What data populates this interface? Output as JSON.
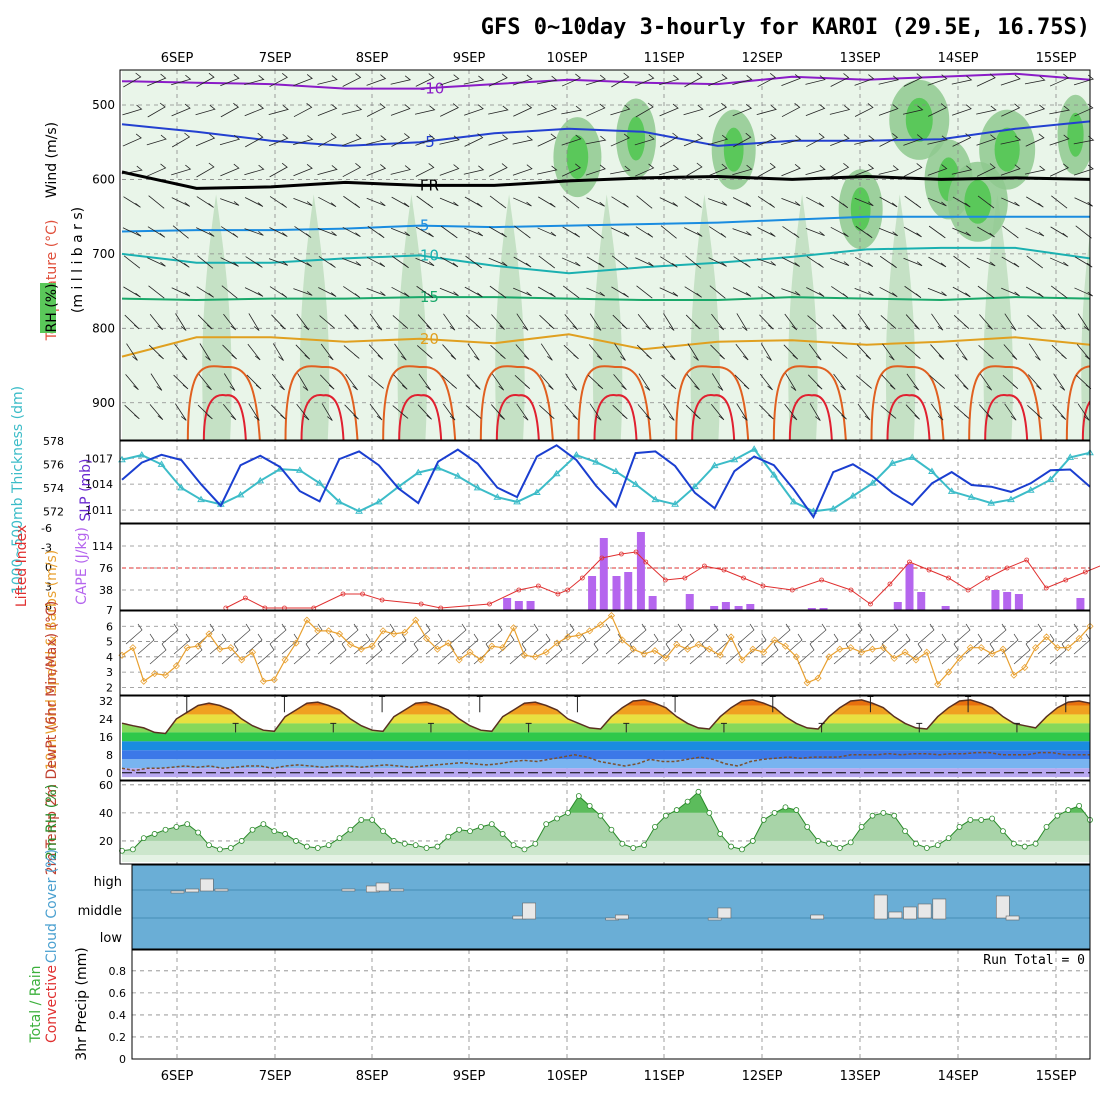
{
  "title": "GFS 0~10day 3-hourly for KAROI (29.5E, 16.75S)",
  "dates": [
    "6SEP",
    "7SEP",
    "8SEP",
    "9SEP",
    "10SEP",
    "11SEP",
    "12SEP",
    "13SEP",
    "14SEP",
    "15SEP"
  ],
  "run_total": "Run Total = 0",
  "colors": {
    "grid": "#888888",
    "temp_min10": "#8a1cc7",
    "temp_min5": "#2340d0",
    "fr": "#000000",
    "temp5": "#1a8ce0",
    "temp10": "#1ab0b0",
    "temp15": "#1aa86a",
    "temp20": "#e0a020",
    "temp25": "#e06020",
    "temp30": "#e02030",
    "rh": "#7dc87d",
    "cloud_bg": "#6aaed6",
    "slp": "#1a3ed0",
    "thick": "#3cbcc8",
    "cape": "#b566ee",
    "li": "#e03030",
    "wind": "#e8a030"
  },
  "chart_data": [
    {
      "type": "contour",
      "panel": "Wind / Temperature / RH",
      "ylabel_parts": [
        "Wind (m/s)",
        "Temperature (°C)",
        "RH (%)",
        "(m i l l i b a r s)"
      ],
      "y_ticks": [
        "500",
        "600",
        "700",
        "800",
        "900"
      ],
      "temperature_contours": [
        {
          "label": "-10",
          "pressure": [
            468,
            470,
            472,
            478,
            478,
            472,
            466,
            470,
            472,
            462,
            466,
            462,
            458,
            466
          ]
        },
        {
          "label": "-5",
          "pressure": [
            526,
            536,
            548,
            555,
            550,
            538,
            532,
            536,
            555,
            548,
            548,
            546,
            532,
            522
          ]
        },
        {
          "label": "FR",
          "pressure": [
            590,
            612,
            610,
            604,
            608,
            608,
            602,
            598,
            596,
            600,
            596,
            600,
            598,
            600
          ]
        },
        {
          "label": "5",
          "pressure": [
            670,
            668,
            668,
            666,
            662,
            664,
            662,
            660,
            658,
            654,
            650,
            650,
            650,
            650
          ]
        },
        {
          "label": "10",
          "pressure": [
            700,
            712,
            712,
            706,
            702,
            716,
            726,
            718,
            712,
            704,
            694,
            692,
            692,
            706
          ]
        },
        {
          "label": "15",
          "pressure": [
            760,
            762,
            760,
            760,
            758,
            758,
            760,
            762,
            762,
            758,
            760,
            762,
            758,
            760
          ]
        },
        {
          "label": "20",
          "pressure": [
            838,
            812,
            812,
            818,
            814,
            820,
            808,
            828,
            818,
            816,
            822,
            818,
            812,
            822
          ]
        }
      ],
      "rh_legend": "RH (%)",
      "wind_barbs": true
    },
    {
      "type": "line",
      "panel": "SLP / Thickness",
      "series": [
        {
          "name": "SLP (mb)",
          "y_ticks": [
            "1011",
            "1014",
            "1017"
          ],
          "values": [
            1014.5,
            1016.5,
            1017.4,
            1016.8,
            1014,
            1011.5,
            1016.2,
            1017.3,
            1016,
            1013.2,
            1012,
            1016.9,
            1017.8,
            1016.2,
            1013.5,
            1011.8,
            1016.6,
            1018,
            1016.4,
            1013.6,
            1012.5,
            1017.2,
            1018.5,
            1016.8,
            1013.8,
            1011.4,
            1017.6,
            1017.8,
            1016.1,
            1013,
            1011.2,
            1015.5,
            1017.2,
            1016.2,
            1013.4,
            1010.2,
            1015.4,
            1016.3,
            1014.9,
            1013,
            1011.6,
            1014.1,
            1015.4,
            1013.9,
            1013.7,
            1013.1,
            1014.1,
            1015.6,
            1015.7,
            1013.7
          ]
        },
        {
          "name": "1000~500mb Thickness (dm)",
          "y_ticks": [
            "572",
            "574",
            "576",
            "578"
          ],
          "values": [
            576.4,
            576.8,
            576.0,
            574.0,
            573.0,
            572.6,
            573.4,
            574.6,
            575.6,
            575.5,
            574.4,
            572.8,
            572.0,
            572.8,
            574.1,
            575.3,
            575.7,
            575.0,
            574.0,
            573.2,
            572.8,
            573.6,
            575.2,
            576.8,
            576.2,
            575.4,
            574.3,
            573.0,
            572.6,
            574.1,
            575.9,
            576.4,
            577.3,
            575.1,
            572.8,
            572.0,
            572.2,
            573.3,
            574.4,
            576.1,
            576.6,
            575.4,
            573.7,
            573.2,
            572.7,
            573.0,
            573.8,
            574.7,
            576.6,
            577.0
          ]
        }
      ]
    },
    {
      "type": "bar+line",
      "panel": "Lifted Index / CAPE",
      "ylabel_li": "Lifted Index",
      "ylabel_cape": "CAPE (J/kg)",
      "li_ticks": [
        "-6",
        "-3",
        "0",
        "3",
        "6"
      ],
      "cape_ticks": [
        "7",
        "38",
        "76",
        "114"
      ],
      "cape_values": [
        0,
        0,
        0,
        0,
        0,
        0,
        0,
        0,
        0,
        0,
        0,
        0,
        0,
        0,
        0,
        0,
        0,
        0,
        0,
        0,
        0,
        0,
        0,
        0,
        0,
        0,
        0,
        0,
        0,
        0,
        0,
        0,
        0,
        0,
        0,
        0,
        0,
        0,
        0,
        0,
        0,
        0,
        0,
        0,
        0,
        0,
        0,
        0,
        0,
        0,
        0,
        0,
        0,
        0,
        0,
        0,
        0,
        0,
        0,
        0,
        0,
        0,
        0,
        0,
        0,
        0,
        0,
        0,
        0,
        0,
        0,
        0,
        0,
        0,
        0,
        0,
        0,
        0,
        0,
        0,
        0,
        0,
        0,
        0,
        0,
        0
      ]
    },
    {
      "type": "line",
      "panel": "10m Wind",
      "ylabel": "10m Wind Speed & Barbs (m/s)",
      "y_ticks": [
        "2",
        "3",
        "4",
        "5",
        "6"
      ],
      "values": [
        4.1,
        4.6,
        2.4,
        2.9,
        2.8,
        3.4,
        4.6,
        4.7,
        5.5,
        4.5,
        4.6,
        3.8,
        4.3,
        2.4,
        2.5,
        3.8,
        4.9,
        6.4,
        5.7,
        5.7,
        5.5,
        4.8,
        4.5,
        4.7,
        5.7,
        5.5,
        5.6,
        6.4,
        5.2,
        4.5,
        4.9,
        3.8,
        4.3,
        3.8,
        4.7,
        4.6,
        5.9,
        4.1,
        4.0,
        4.3,
        4.9,
        5.3,
        5.4,
        5.7,
        6.1,
        6.7,
        5.1,
        4.5,
        4.2,
        4.4,
        3.9,
        4.8,
        4.5,
        4.8,
        4.5,
        4.1,
        5.3,
        3.8,
        4.5,
        4.3,
        5.1,
        4.7,
        4.0,
        2.3,
        2.6,
        4.0,
        4.5,
        4.6,
        4.3,
        4.5,
        4.6,
        3.9,
        4.3,
        3.8,
        4.3,
        2.2,
        3.0,
        3.9,
        4.6,
        4.6,
        4.2,
        4.5,
        2.8,
        3.3,
        4.6,
        5.3,
        4.6,
        4.6,
        5.2,
        6.0
      ]
    },
    {
      "type": "area+line",
      "panel": "2m Temp / DewPt",
      "ylabel": "2m Temp 2m DewPt (6hr Min/Max) (°C)",
      "y_ticks": [
        "0",
        "8",
        "16",
        "24",
        "32"
      ],
      "temp_values": [
        22.1,
        21,
        20,
        18,
        17.5,
        24,
        27,
        30,
        31,
        30,
        28,
        24,
        21,
        19,
        18.5,
        25,
        28,
        31,
        31.5,
        30,
        28,
        24,
        21,
        19,
        18.5,
        25,
        28,
        31,
        31.5,
        30,
        28,
        24,
        21,
        19,
        18.5,
        25,
        28,
        31,
        31.5,
        30,
        28,
        24,
        22,
        20,
        19.5,
        25,
        29,
        32,
        32.5,
        31,
        29,
        25,
        22,
        20,
        19.5,
        25,
        29,
        32,
        32.5,
        31,
        29,
        25,
        22,
        20,
        19.5,
        25,
        29,
        32,
        32.5,
        31,
        29,
        25,
        22,
        20,
        19.5,
        25,
        29,
        32,
        32.5,
        31,
        29,
        25,
        22,
        21,
        20,
        25,
        29,
        31.5,
        32,
        31
      ],
      "dew_values": [
        2,
        1,
        2,
        2,
        2.5,
        3,
        2.5,
        3,
        2,
        2.5,
        3,
        3,
        2,
        3,
        3.5,
        3,
        2.5,
        3,
        3,
        2.5,
        3,
        3.5,
        3,
        2.5,
        3,
        3.5,
        4,
        4.5,
        4,
        3.5,
        4,
        5,
        5.5,
        5,
        6,
        7,
        8,
        7,
        5,
        4,
        3,
        4,
        6,
        5,
        5,
        6,
        7,
        6,
        4,
        3,
        5,
        6,
        6.5,
        7,
        6.5,
        7,
        7,
        7,
        8,
        8,
        8,
        8.5,
        8,
        8.5,
        8.5,
        8,
        8.5,
        8.5,
        9,
        9,
        8,
        8,
        8,
        9,
        9,
        8,
        8,
        8
      ]
    },
    {
      "type": "area",
      "panel": "2m RH",
      "ylabel": "2m RH (%)",
      "y_ticks": [
        "20",
        "40",
        "60"
      ],
      "values": [
        13,
        14,
        22,
        25,
        28,
        30,
        32,
        26,
        17,
        14,
        15,
        20,
        28,
        32,
        27,
        25,
        20,
        16,
        15,
        17,
        22,
        28,
        35,
        35,
        27,
        20,
        18,
        17,
        15,
        16,
        23,
        28,
        27,
        30,
        32,
        25,
        17,
        14,
        18,
        32,
        36,
        40,
        52,
        45,
        38,
        28,
        18,
        15,
        17,
        30,
        38,
        42,
        48,
        55,
        40,
        25,
        16,
        14,
        20,
        35,
        40,
        44,
        42,
        30,
        20,
        18,
        15,
        19,
        30,
        38,
        40,
        38,
        27,
        18,
        15,
        17,
        22,
        30,
        35,
        35,
        36,
        27,
        18,
        16,
        18,
        30,
        38,
        42,
        45,
        35
      ]
    },
    {
      "type": "bar",
      "panel": "Cloud Cover",
      "ylabel": "Cloud Cover (%)",
      "levels": [
        "high",
        "middle",
        "low"
      ]
    },
    {
      "type": "bar",
      "panel": "3hr Precip",
      "ylabel_parts": [
        "Total / Rain",
        "Convective",
        "3hr Precip (mm)"
      ],
      "y_ticks": [
        "0",
        "0.2",
        "0.4",
        "0.6",
        "0.8"
      ],
      "values": []
    }
  ]
}
